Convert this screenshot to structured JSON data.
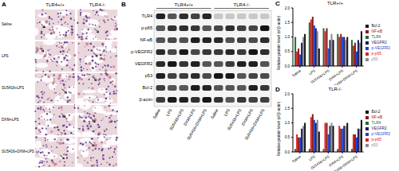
{
  "panel_a": {
    "label": "A",
    "columns": [
      "TLR4+/+",
      "TLR4-/-"
    ],
    "rows": [
      "Saline",
      "LPS",
      "SU5416+LPS",
      "DXM+LPS",
      "SU5416+DXM+LPS"
    ]
  },
  "panel_b": {
    "label": "B",
    "groups": [
      "TLR4+/+",
      "TLR4-/-"
    ],
    "lanes": [
      "Saline",
      "LPS",
      "SU5416+LPS",
      "DXM+LPS",
      "SU5416+DXM+LPS"
    ],
    "proteins": [
      "TLR4",
      "p-p65",
      "NF-κB",
      "p-VEGFR2",
      "VEGFR2",
      "p53",
      "Bcl-2",
      "β-actin"
    ]
  },
  "chart_data": [
    {
      "type": "bar",
      "title": "TLR+/+",
      "annotations": [
        "C"
      ],
      "y_label": "Relative protein level (of β-actin)",
      "categories": [
        "Saline",
        "LPS",
        "SU5416+LPS",
        "DXM+LPS",
        "SU5416+DXM+LPS"
      ],
      "ylim": [
        0,
        2
      ],
      "yticks": [
        {
          "value": 0,
          "label": "0.0"
        },
        0.5,
        {
          "value": 1,
          "label": "1.0"
        },
        1.5,
        {
          "value": 2,
          "label": "2.0"
        }
      ],
      "legend": "right",
      "series": [
        {
          "name": "TLR4",
          "color": "#1e6b3a",
          "values": [
            1.0,
            1.5,
            1.3,
            1.1,
            0.9
          ]
        },
        {
          "name": "p-p65",
          "color": "#e02020",
          "values": [
            0.5,
            1.6,
            1.2,
            1.0,
            0.7
          ]
        },
        {
          "name": "NF-κB",
          "color": "#8b1a1a",
          "values": [
            0.6,
            1.7,
            1.3,
            1.1,
            0.8
          ]
        },
        {
          "name": "p-VEGFR2",
          "color": "#1f3fd0",
          "values": [
            0.4,
            1.4,
            0.6,
            1.0,
            0.5
          ]
        },
        {
          "name": "VEGFR2",
          "color": "#1a1a5e",
          "values": [
            0.8,
            1.3,
            0.9,
            1.0,
            0.9
          ]
        },
        {
          "name": "p53",
          "color": "#8c8c8c",
          "values": [
            1.0,
            1.2,
            1.1,
            0.9,
            0.8
          ]
        },
        {
          "name": "Bcl-2",
          "color": "#111111",
          "values": [
            1.1,
            0.6,
            0.9,
            1.0,
            1.2
          ]
        }
      ]
    },
    {
      "type": "bar",
      "title": "TLR-/-",
      "annotations": [
        "D"
      ],
      "y_label": "Relative protein level (of β-actin)",
      "categories": [
        "Saline",
        "LPS",
        "SU5416+LPS",
        "DXM+LPS",
        "SU5416+DXM+LPS"
      ],
      "ylim": [
        0,
        2
      ],
      "yticks": [
        {
          "value": 0,
          "label": "0.0"
        },
        0.5,
        {
          "value": 1,
          "label": "1.0"
        },
        1.5,
        {
          "value": 2,
          "label": "2.0"
        }
      ],
      "legend": "right",
      "series": [
        {
          "name": "TLR4",
          "color": "#1e6b3a",
          "values": [
            0.1,
            0.1,
            0.1,
            0.1,
            0.1
          ]
        },
        {
          "name": "p-p65",
          "color": "#e02020",
          "values": [
            0.6,
            1.2,
            1.0,
            0.9,
            0.6
          ]
        },
        {
          "name": "NF-κB",
          "color": "#8b1a1a",
          "values": [
            0.5,
            1.3,
            1.0,
            0.8,
            0.6
          ]
        },
        {
          "name": "p-VEGFR2",
          "color": "#1f3fd0",
          "values": [
            0.5,
            1.1,
            0.6,
            0.8,
            0.5
          ]
        },
        {
          "name": "VEGFR2",
          "color": "#1a1a5e",
          "values": [
            0.8,
            1.0,
            0.9,
            0.9,
            0.8
          ]
        },
        {
          "name": "p53",
          "color": "#8c8c8c",
          "values": [
            0.9,
            1.1,
            1.0,
            0.9,
            0.8
          ]
        },
        {
          "name": "Bcl-2",
          "color": "#111111",
          "values": [
            1.0,
            0.7,
            0.9,
            1.0,
            1.1
          ]
        }
      ]
    }
  ]
}
